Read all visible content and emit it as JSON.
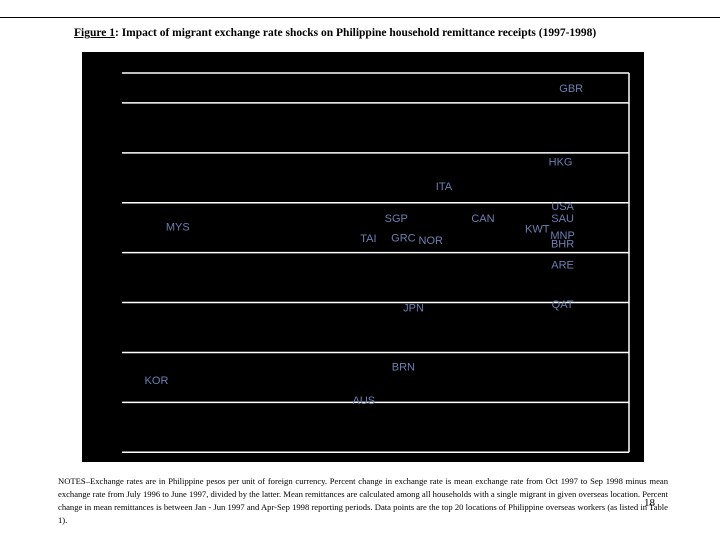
{
  "figure": {
    "number_label": "Figure 1",
    "title_text": ": Impact of migrant exchange rate shocks on Philippine household remittance receipts (1997-1998)"
  },
  "notes": "NOTES–Exchange rates are in Philippine pesos per unit of foreign currency. Percent change in exchange rate is mean exchange rate from Oct 1997 to Sep 1998 minus mean exchange rate from July 1996 to June 1997, divided by the latter. Mean remittances are calculated among all households with a single migrant in given overseas location. Percent change in mean remittances is between Jan - Jun 1997 and Apr-Sep 1998 reporting periods. Data points are the top 20 locations of Philippine overseas workers (as listed in Table 1).",
  "page_number": "18",
  "colors": {
    "background": "#000000",
    "gridline": "#ffffff",
    "point_label": "#6d7fb0"
  },
  "chart_data": {
    "type": "scatter",
    "title": "",
    "xlabel": "",
    "ylabel": "",
    "grid": true,
    "xlim": [
      0,
      100
    ],
    "ylim": [
      0,
      100
    ],
    "gridlines_y": [
      1.2,
      13.9,
      26.6,
      39.3,
      52.0,
      64.7,
      77.4,
      90.1,
      97.7
    ],
    "points": [
      {
        "label": "GBR",
        "x": 88.6,
        "y": 93.6
      },
      {
        "label": "HKG",
        "x": 86.5,
        "y": 74.9
      },
      {
        "label": "ITA",
        "x": 63.5,
        "y": 68.7
      },
      {
        "label": "USA",
        "x": 86.9,
        "y": 63.6
      },
      {
        "label": "SGP",
        "x": 54.1,
        "y": 60.5
      },
      {
        "label": "CAN",
        "x": 71.2,
        "y": 60.5
      },
      {
        "label": "SAU",
        "x": 86.9,
        "y": 60.5
      },
      {
        "label": "MYS",
        "x": 11.0,
        "y": 58.4
      },
      {
        "label": "KWT",
        "x": 81.9,
        "y": 57.9
      },
      {
        "label": "MNP",
        "x": 86.9,
        "y": 56.2
      },
      {
        "label": "TAI",
        "x": 48.6,
        "y": 55.4
      },
      {
        "label": "GRC",
        "x": 55.5,
        "y": 55.6
      },
      {
        "label": "NOR",
        "x": 60.9,
        "y": 54.9
      },
      {
        "label": "BHR",
        "x": 86.9,
        "y": 54.1
      },
      {
        "label": "ARE",
        "x": 86.9,
        "y": 48.7
      },
      {
        "label": "QAT",
        "x": 86.9,
        "y": 38.6
      },
      {
        "label": "JPN",
        "x": 57.5,
        "y": 37.8
      },
      {
        "label": "BRN",
        "x": 55.5,
        "y": 22.7
      },
      {
        "label": "KOR",
        "x": 6.8,
        "y": 19.3
      },
      {
        "label": "AUS",
        "x": 47.7,
        "y": 14.2
      }
    ]
  }
}
